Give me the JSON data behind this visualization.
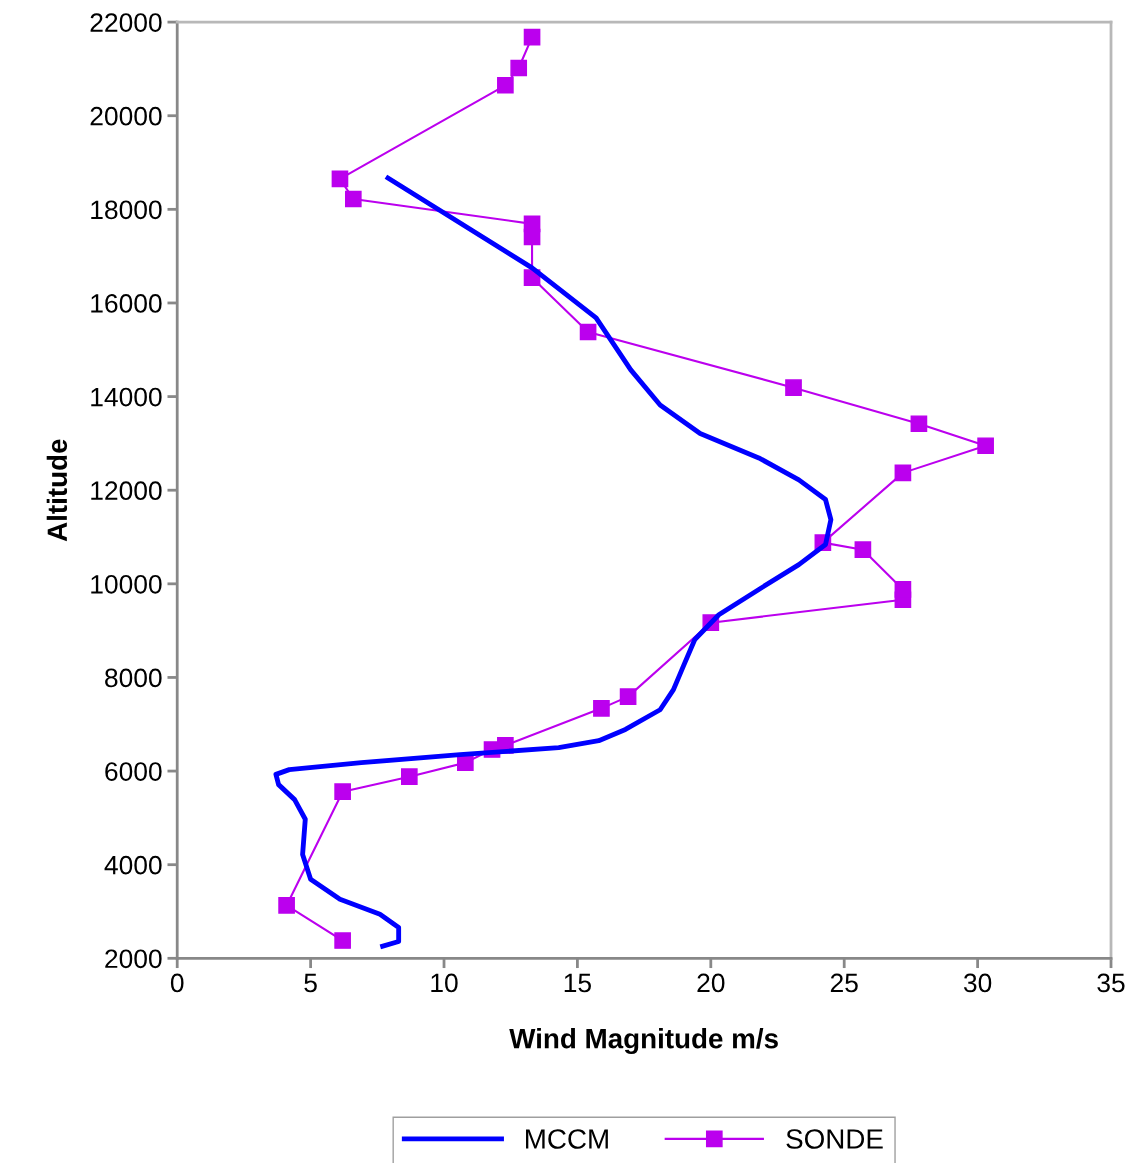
{
  "chart_data": {
    "type": "line",
    "xlabel": "Wind Magnitude m/s",
    "ylabel": "Altitude",
    "xlim": [
      0,
      35
    ],
    "xticks": [
      0,
      5,
      10,
      15,
      20,
      25,
      30,
      35
    ],
    "ylim": [
      2000,
      22000
    ],
    "yticks": [
      2000,
      4000,
      6000,
      8000,
      10000,
      12000,
      14000,
      16000,
      18000,
      20000,
      22000
    ],
    "grid": false,
    "legend": "bottom",
    "series": [
      {
        "name": "MCCM",
        "color": "#0000ff",
        "marker": "none",
        "line_style": "solid",
        "x": [
          7.9,
          13.3,
          15.7,
          17.0,
          18.1,
          19.6,
          21.8,
          23.3,
          24.3,
          24.5,
          24.3,
          23.3,
          21.8,
          20.3,
          19.4,
          19.0,
          18.6,
          18.1,
          16.8,
          15.8,
          14.3,
          10.6,
          6.9,
          4.2,
          3.7,
          3.8,
          4.4,
          4.8,
          4.7,
          5.0,
          6.1,
          7.6,
          8.3,
          8.3,
          7.7
        ],
        "values": [
          18670,
          16750,
          15680,
          14570,
          13820,
          13210,
          12690,
          12220,
          11800,
          11370,
          10840,
          10410,
          9880,
          9340,
          8810,
          8280,
          7740,
          7310,
          6890,
          6650,
          6500,
          6350,
          6180,
          6030,
          5930,
          5710,
          5390,
          4970,
          4220,
          3690,
          3260,
          2940,
          2660,
          2360,
          2260
        ]
      },
      {
        "name": "SONDE",
        "color": "#bb00ee",
        "marker": "square",
        "line_style": "solid",
        "x": [
          6.2,
          4.1,
          6.2,
          8.7,
          10.8,
          11.8,
          12.3,
          15.9,
          16.9,
          20.0,
          27.2,
          27.2,
          25.7,
          24.2,
          27.2,
          30.3,
          27.8,
          23.1,
          15.4,
          13.3,
          13.3,
          13.3,
          6.6,
          6.1,
          12.3,
          12.8,
          13.3
        ],
        "values": [
          2380,
          3130,
          5560,
          5880,
          6180,
          6460,
          6550,
          7340,
          7590,
          9170,
          9660,
          9880,
          10730,
          10880,
          12370,
          12950,
          13420,
          14190,
          15380,
          16540,
          17410,
          17690,
          18220,
          18650,
          20650,
          21020,
          21680
        ]
      }
    ]
  }
}
